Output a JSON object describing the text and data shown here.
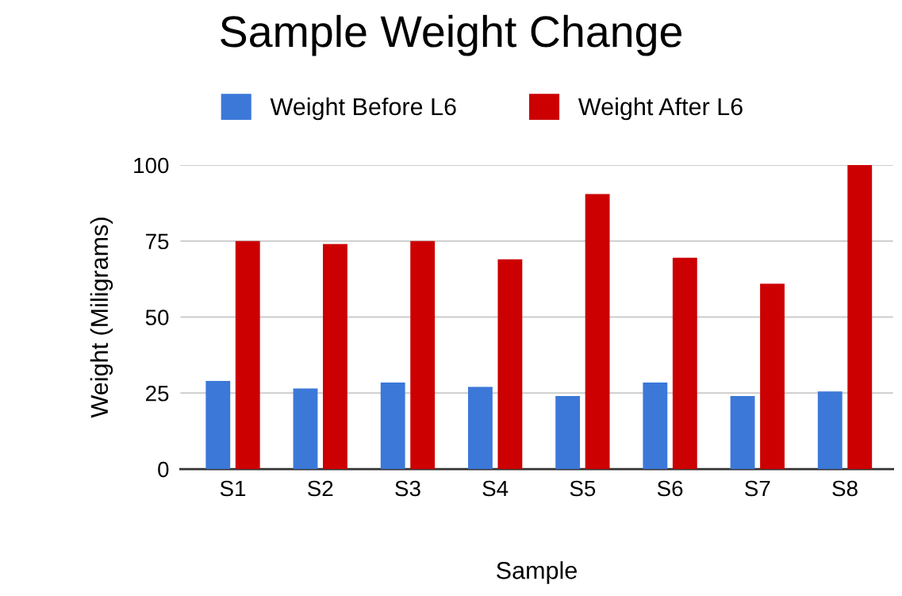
{
  "chart_data": {
    "type": "bar",
    "title": "Sample Weight Change",
    "xlabel": "Sample",
    "ylabel": "Weight (Miligrams)",
    "categories": [
      "S1",
      "S2",
      "S3",
      "S4",
      "S5",
      "S6",
      "S7",
      "S8"
    ],
    "series": [
      {
        "name": "Weight Before L6",
        "color": "#3c78d8",
        "values": [
          29,
          26.5,
          28.5,
          27,
          24,
          28.5,
          24,
          25.5
        ]
      },
      {
        "name": "Weight After L6",
        "color": "#cc0000",
        "values": [
          75,
          74,
          75,
          69,
          90.5,
          69.5,
          61,
          100
        ]
      }
    ],
    "ylim": [
      0,
      100
    ],
    "yticks": [
      0,
      25,
      50,
      75,
      100
    ],
    "grid": "y",
    "legend": "top"
  }
}
